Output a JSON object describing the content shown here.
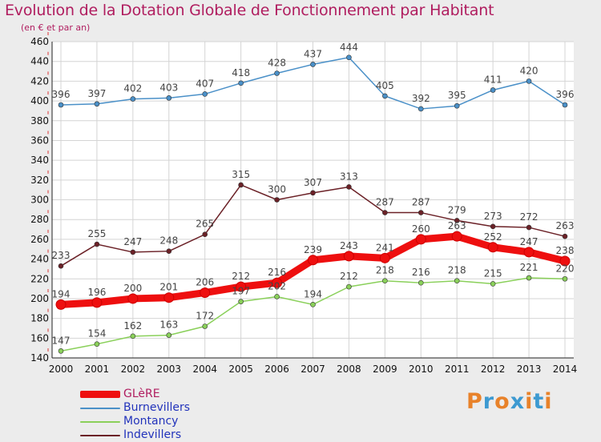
{
  "header": {
    "title": "Evolution de la Dotation Globale de Fonctionnement par Habitant",
    "subtitle": "(en € et par an)"
  },
  "logo": {
    "text": "Proxiti",
    "letters": [
      "P",
      "r",
      "o",
      "x",
      "i",
      "t",
      "i"
    ],
    "letter_colors": [
      "#e8822a",
      "#3d9ad1",
      "#e8822a",
      "#3d9ad1",
      "#e8822a",
      "#3d9ad1",
      "#e8822a"
    ]
  },
  "colors": {
    "background": "#ececec",
    "plot_background": "#ffffff",
    "grid": "#d4d4d4",
    "title": "#b01d5f",
    "axis_label": "#111111",
    "data_label": "#444444"
  },
  "chart_data": {
    "type": "line",
    "x": [
      "2000",
      "2001",
      "2002",
      "2003",
      "2004",
      "2005",
      "2006",
      "2007",
      "2008",
      "2009",
      "2010",
      "2011",
      "2012",
      "2013",
      "2014"
    ],
    "ylim": [
      140,
      460
    ],
    "ytick_step": 20,
    "grid": true,
    "legend_position": "bottom-left",
    "series": [
      {
        "name": "Burnevillers",
        "color": "#4a90c8",
        "emphasis": false,
        "values": [
          396,
          397,
          402,
          403,
          407,
          418,
          428,
          437,
          444,
          405,
          392,
          395,
          411,
          420,
          396
        ]
      },
      {
        "name": "Indevillers",
        "color": "#6b2127",
        "emphasis": false,
        "values": [
          233,
          255,
          247,
          248,
          265,
          315,
          300,
          307,
          313,
          287,
          287,
          279,
          273,
          272,
          263
        ]
      },
      {
        "name": "Montancy",
        "color": "#8ad05a",
        "emphasis": false,
        "values": [
          147,
          154,
          162,
          163,
          172,
          197,
          202,
          194,
          212,
          218,
          216,
          218,
          215,
          221,
          220
        ]
      },
      {
        "name": "GLèRE",
        "color": "#ee0f0f",
        "emphasis": true,
        "values": [
          194,
          196,
          200,
          201,
          206,
          212,
          216,
          239,
          243,
          241,
          260,
          263,
          252,
          247,
          238
        ]
      }
    ],
    "legend_order": [
      "GLèRE",
      "Burnevillers",
      "Montancy",
      "Indevillers"
    ]
  }
}
